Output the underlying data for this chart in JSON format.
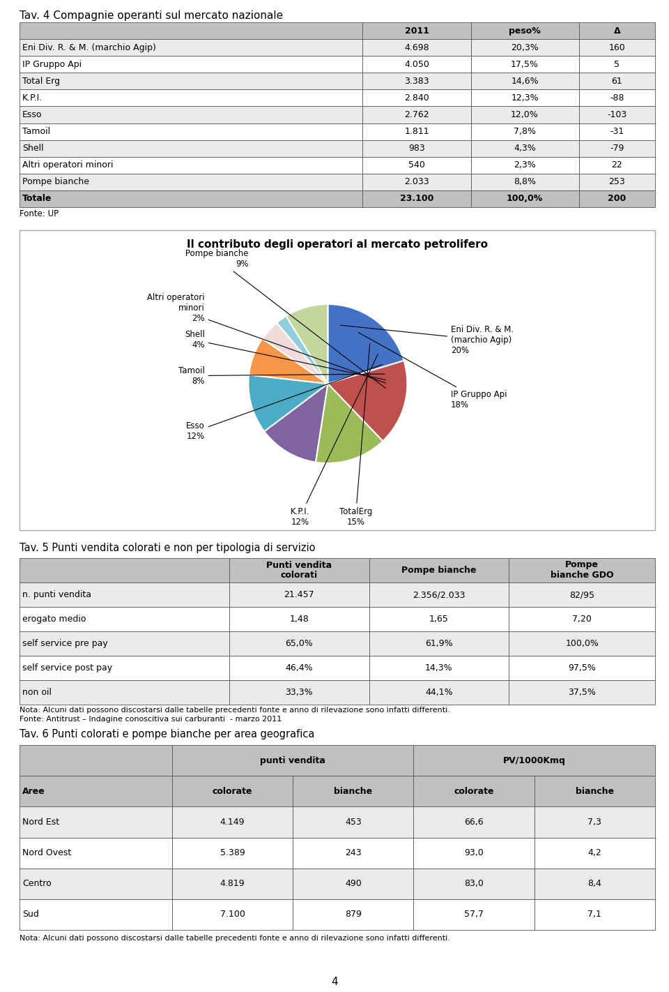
{
  "title": "Tav. 4 Compagnie operanti sul mercato nazionale",
  "table1_headers": [
    "",
    "2011",
    "peso%",
    "Δ"
  ],
  "table1_rows": [
    [
      "Eni Div. R. & M. (marchio Agip)",
      "4.698",
      "20,3%",
      "160"
    ],
    [
      "IP Gruppo Api",
      "4.050",
      "17,5%",
      "5"
    ],
    [
      "Total Erg",
      "3.383",
      "14,6%",
      "61"
    ],
    [
      "K.P.I.",
      "2.840",
      "12,3%",
      "-88"
    ],
    [
      "Esso",
      "2.762",
      "12,0%",
      "-103"
    ],
    [
      "Tamoil",
      "1.811",
      "7,8%",
      "-31"
    ],
    [
      "Shell",
      "983",
      "4,3%",
      "-79"
    ],
    [
      "Altri operatori minori",
      "540",
      "2,3%",
      "22"
    ],
    [
      "Pompe bianche",
      "2.033",
      "8,8%",
      "253"
    ],
    [
      "Totale",
      "23.100",
      "100,0%",
      "200"
    ]
  ],
  "fonte1": "Fonte: UP",
  "pie_title": "Il contributo degli operatori al mercato petrolifero",
  "pie_values": [
    20.3,
    17.5,
    14.6,
    12.3,
    12.0,
    7.8,
    4.3,
    2.3,
    8.8
  ],
  "pie_colors": [
    "#4472C4",
    "#C0504D",
    "#9BBB59",
    "#8064A2",
    "#4BACC6",
    "#F79646",
    "#F2DCDB",
    "#92CDDC",
    "#C3D69B"
  ],
  "pie_label_texts": [
    "Eni Div. R. & M.\n(marchio Agip)\n20%",
    "IP Gruppo Api\n18%",
    "TotalErg\n15%",
    "K.P.I.\n12%",
    "Esso\n12%",
    "Tamoil\n8%",
    "Shell\n4%",
    "Altri operatori\nminori\n2%",
    "Pompe bianche\n9%"
  ],
  "table2_title": "Tav. 5 Punti vendita colorati e non per tipologia di servizio",
  "table2_headers": [
    "",
    "Punti vendita\ncolorati",
    "Pompe bianche",
    "Pompe\nbianche GDO"
  ],
  "table2_rows": [
    [
      "n. punti vendita",
      "21.457",
      "2.356/2.033",
      "82/95"
    ],
    [
      "erogato medio",
      "1,48",
      "1,65",
      "7,20"
    ],
    [
      "self service pre pay",
      "65,0%",
      "61,9%",
      "100,0%"
    ],
    [
      "self service post pay",
      "46,4%",
      "14,3%",
      "97,5%"
    ],
    [
      "non oil",
      "33,3%",
      "44,1%",
      "37,5%"
    ]
  ],
  "fonte2_line1": "Nota: Alcuni dati possono discostarsi dalle tabelle precedenti fonte e anno di rilevazione sono infatti differenti.",
  "fonte2_line2": "Fonte: Antitrust – Indagine conoscitiva sui carburanti  - marzo 2011",
  "table3_title": "Tav. 6 Punti colorati e pompe bianche per area geografica",
  "table3_headers_row2": [
    "Aree",
    "colorate",
    "bianche",
    "colorate",
    "bianche"
  ],
  "table3_rows": [
    [
      "Nord Est",
      "4.149",
      "453",
      "66,6",
      "7,3"
    ],
    [
      "Nord Ovest",
      "5.389",
      "243",
      "93,0",
      "4,2"
    ],
    [
      "Centro",
      "4.819",
      "490",
      "83,0",
      "8,4"
    ],
    [
      "Sud",
      "7.100",
      "879",
      "57,7",
      "7,1"
    ]
  ],
  "fonte3": "Nota: Alcuni dati possono discostarsi dalle tabelle precedenti fonte e anno di rilevazione sono infatti differenti.",
  "page_number": "4"
}
